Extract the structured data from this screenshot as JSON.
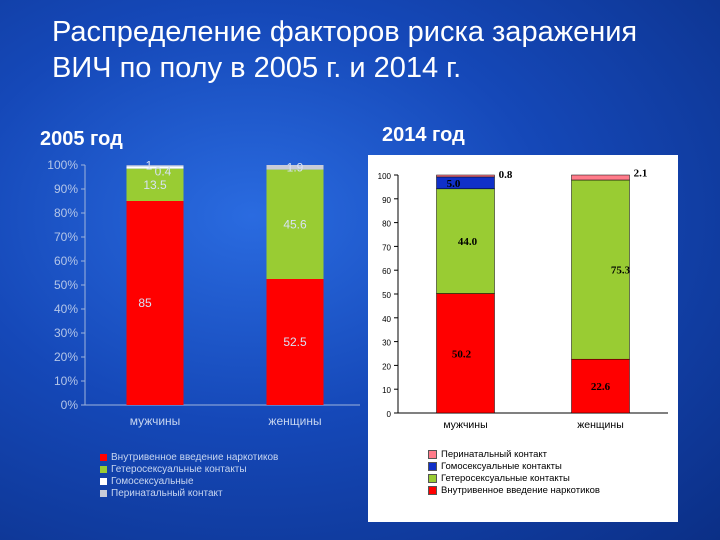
{
  "slide": {
    "title": "Распределение факторов риска заражения ВИЧ по полу в 2005 г. и 2014 г."
  },
  "colors": {
    "injection": "#ff0000",
    "hetero": "#99cc33",
    "homo": "#ffffff",
    "homo_2014": "#1030c8",
    "perinatal": "#c8ccd8",
    "perinatal_2014": "#ff7b8a"
  },
  "chart_data": [
    {
      "type": "bar",
      "stacked": true,
      "title": "2005 год",
      "categories": [
        "мужчины",
        "женщины"
      ],
      "yticks": [
        "0%",
        "10%",
        "20%",
        "30%",
        "40%",
        "50%",
        "60%",
        "70%",
        "80%",
        "90%",
        "100%"
      ],
      "ylim": [
        0,
        100
      ],
      "series": [
        {
          "name": "Внутривенное введение наркотиков",
          "values": [
            85,
            52.5
          ],
          "color": "#ff0000"
        },
        {
          "name": "Гетеросексуальные контакты",
          "values": [
            13.5,
            45.6
          ],
          "color": "#99cc33"
        },
        {
          "name": "Гомосексуальные",
          "values": [
            1,
            0
          ],
          "color": "#ffffff"
        },
        {
          "name": "Перинатальный контакт",
          "values": [
            0.4,
            1.9
          ],
          "color": "#c8ccd8"
        }
      ],
      "data_labels": [
        [
          "85",
          "52.5"
        ],
        [
          "13.5",
          "45.6"
        ],
        [
          "1",
          ""
        ],
        [
          "0.4",
          "1.9"
        ]
      ],
      "legend": "bottom"
    },
    {
      "type": "bar",
      "stacked": true,
      "title": "2014 год",
      "categories": [
        "мужчины",
        "женщины"
      ],
      "yticks": [
        "0",
        "10",
        "20",
        "30",
        "40",
        "50",
        "60",
        "70",
        "80",
        "90",
        "100"
      ],
      "ylim": [
        0,
        100
      ],
      "series": [
        {
          "name": "Внутривенное введение наркотиков",
          "values": [
            50.2,
            22.6
          ],
          "color": "#ff0000"
        },
        {
          "name": "Гетеросексуальные контакты",
          "values": [
            44.0,
            75.3
          ],
          "color": "#99cc33"
        },
        {
          "name": "Гомосексуальные контакты",
          "values": [
            5.0,
            0
          ],
          "color": "#1030c8"
        },
        {
          "name": "Перинатальный контакт",
          "values": [
            0.8,
            2.1
          ],
          "color": "#ff7b8a"
        }
      ],
      "data_labels": [
        [
          "50.2",
          "22.6"
        ],
        [
          "44.0",
          "75.3"
        ],
        [
          "5.0",
          ""
        ],
        [
          "0.8",
          "2.1"
        ]
      ],
      "legend_order": [
        3,
        2,
        1,
        0
      ],
      "legend": "bottom"
    }
  ]
}
